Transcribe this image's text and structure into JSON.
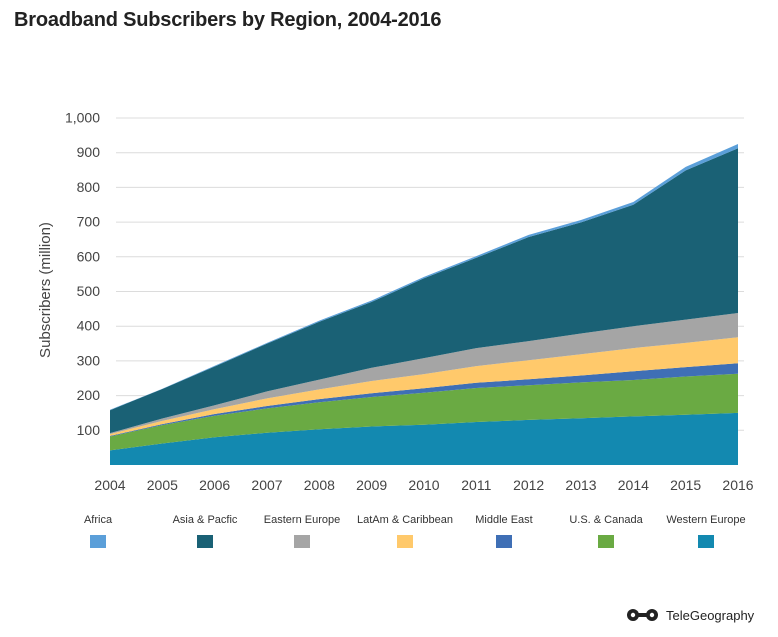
{
  "title": "Broadband Subscribers by Region, 2004-2016",
  "footer": {
    "brand": "TeleGeography"
  },
  "chart_data": {
    "type": "area",
    "stacked": true,
    "title": "Broadband Subscribers by Region, 2004-2016",
    "xlabel": "",
    "ylabel": "Subscribers (million)",
    "ylim": [
      0,
      1000
    ],
    "yticks": [
      100,
      200,
      300,
      400,
      500,
      600,
      700,
      800,
      900,
      1000
    ],
    "ytick_labels": [
      "100",
      "200",
      "300",
      "400",
      "500",
      "600",
      "700",
      "800",
      "900",
      "1,000"
    ],
    "grid": true,
    "legend_position": "bottom",
    "x": [
      "2004",
      "2005",
      "2006",
      "2007",
      "2008",
      "2009",
      "2010",
      "2011",
      "2012",
      "2013",
      "2014",
      "2015",
      "2016"
    ],
    "series": [
      {
        "name": "Western Europe",
        "color": "#1389b0",
        "values": [
          42,
          62,
          80,
          93,
          103,
          111,
          116,
          124,
          130,
          135,
          140,
          145,
          150
        ]
      },
      {
        "name": "U.S. & Canada",
        "color": "#6aaa43",
        "values": [
          40,
          53,
          62,
          70,
          78,
          85,
          92,
          98,
          100,
          103,
          105,
          110,
          113
        ]
      },
      {
        "name": "Middle East",
        "color": "#3f6fb5",
        "values": [
          2,
          3,
          5,
          7,
          9,
          11,
          13,
          15,
          17,
          20,
          25,
          27,
          30
        ]
      },
      {
        "name": "LatAm & Caribbean",
        "color": "#ffc96b",
        "values": [
          5,
          9,
          14,
          22,
          28,
          35,
          41,
          48,
          55,
          61,
          67,
          70,
          75
        ]
      },
      {
        "name": "Eastern Europe",
        "color": "#a5a5a5",
        "values": [
          3,
          7,
          11,
          20,
          28,
          38,
          46,
          52,
          55,
          60,
          63,
          67,
          70
        ]
      },
      {
        "name": "Asia & Pacific",
        "color": "#1a6175",
        "values": [
          66,
          85,
          112,
          138,
          167,
          190,
          230,
          260,
          300,
          320,
          350,
          430,
          475
        ]
      },
      {
        "name": "Africa",
        "color": "#5b9fd9",
        "values": [
          1,
          1,
          2,
          2,
          3,
          4,
          4,
          5,
          6,
          7,
          8,
          10,
          12
        ]
      }
    ],
    "legend_order": [
      "Africa",
      "Asia & Pacific",
      "Eastern Europe",
      "LatAm & Caribbean",
      "Middle East",
      "U.S. & Canada",
      "Western Europe"
    ],
    "legend_labels": [
      "Africa",
      "Asia & Pacfic",
      "Eastern Europe",
      "LatAm & Caribbean",
      "Middle East",
      "U.S. & Canada",
      "Western Europe"
    ]
  }
}
